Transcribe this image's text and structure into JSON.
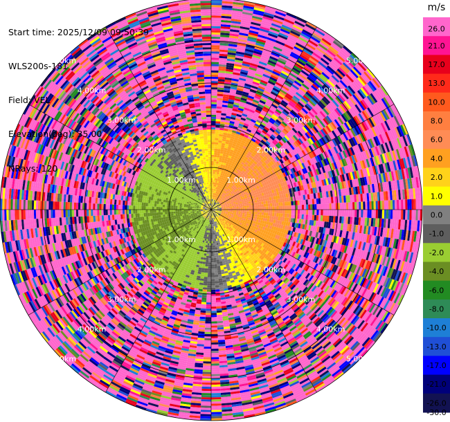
{
  "header": {
    "start_time": "Start time: 2025/12/09 09:50:39",
    "instrument": "WLS200s-181",
    "field": "Field: VEL",
    "elevation": "Elevation(deg): 35.00",
    "nrays": "NRays: 120"
  },
  "chart_data": {
    "type": "heatmap",
    "subtype": "radar-ppi",
    "field": "VEL",
    "elevation_deg": 35.0,
    "n_rays": 120,
    "range_rings_km": [
      1.0,
      2.0,
      3.0,
      4.0,
      5.0
    ],
    "ring_labels": [
      "1.00km",
      "2.00km",
      "3.00km",
      "4.00km",
      "5.00km"
    ],
    "max_range_km": 5.0,
    "colorbar": {
      "unit": "m/s",
      "ticks": [
        "26.0",
        "21.0",
        "17.0",
        "13.0",
        "10.0",
        "8.0",
        "6.0",
        "4.0",
        "2.0",
        "1.0",
        "0.0",
        "-1.0",
        "-2.0",
        "-4.0",
        "-6.0",
        "-8.0",
        "-10.0",
        "-13.0",
        "-17.0",
        "-21.0",
        "-26.0",
        "-30.0"
      ],
      "colors": [
        "#ff66cc",
        "#ff1493",
        "#e8001c",
        "#ff2a1a",
        "#ff5a1e",
        "#ff7f40",
        "#ff8c55",
        "#ffa020",
        "#ffd21a",
        "#ffff00",
        "#808080",
        "#5e5e5e",
        "#9acd32",
        "#6b8e23",
        "#228b22",
        "#2e8b57",
        "#1e7fd6",
        "#1f4fd6",
        "#0000ff",
        "#00007a",
        "#121252"
      ]
    },
    "wind": {
      "inner_range_km": 1.9,
      "description": "approaching (negative) from south-west, receding (positive) toward north-east"
    }
  }
}
